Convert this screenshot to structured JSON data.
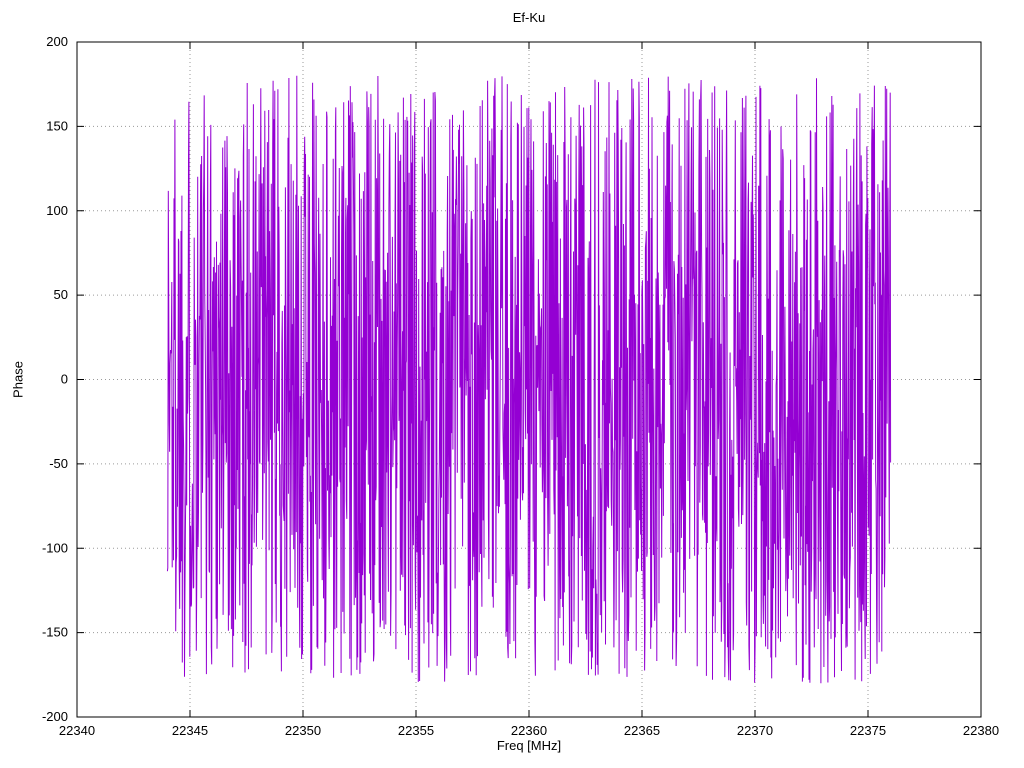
{
  "chart_data": {
    "type": "line",
    "title": "Ef-Ku",
    "xlabel": "Freq [MHz]",
    "ylabel": "Phase",
    "xlim": [
      22340,
      22380
    ],
    "ylim": [
      -200,
      200
    ],
    "x_ticks": [
      22340,
      22345,
      22350,
      22355,
      22360,
      22365,
      22370,
      22375,
      22380
    ],
    "y_ticks": [
      -200,
      -150,
      -100,
      -50,
      0,
      50,
      100,
      150,
      200
    ],
    "grid": true,
    "legend": "none",
    "background_color": "#ffffff",
    "axis_color": "#000000",
    "grid_color": "#9a9a9a",
    "line_color": "#9400d3",
    "series": [
      {
        "name": "phase",
        "description": "wrapped phase noise, dense uniform random values spanning -180 to 180 degrees between 22344 and 22376 MHz",
        "generator": {
          "kind": "uniform-random",
          "seed": 1337,
          "n": 1650,
          "x_start": 22344.0,
          "x_end": 22376.0,
          "y_min": -180,
          "y_max": 180
        }
      }
    ]
  }
}
